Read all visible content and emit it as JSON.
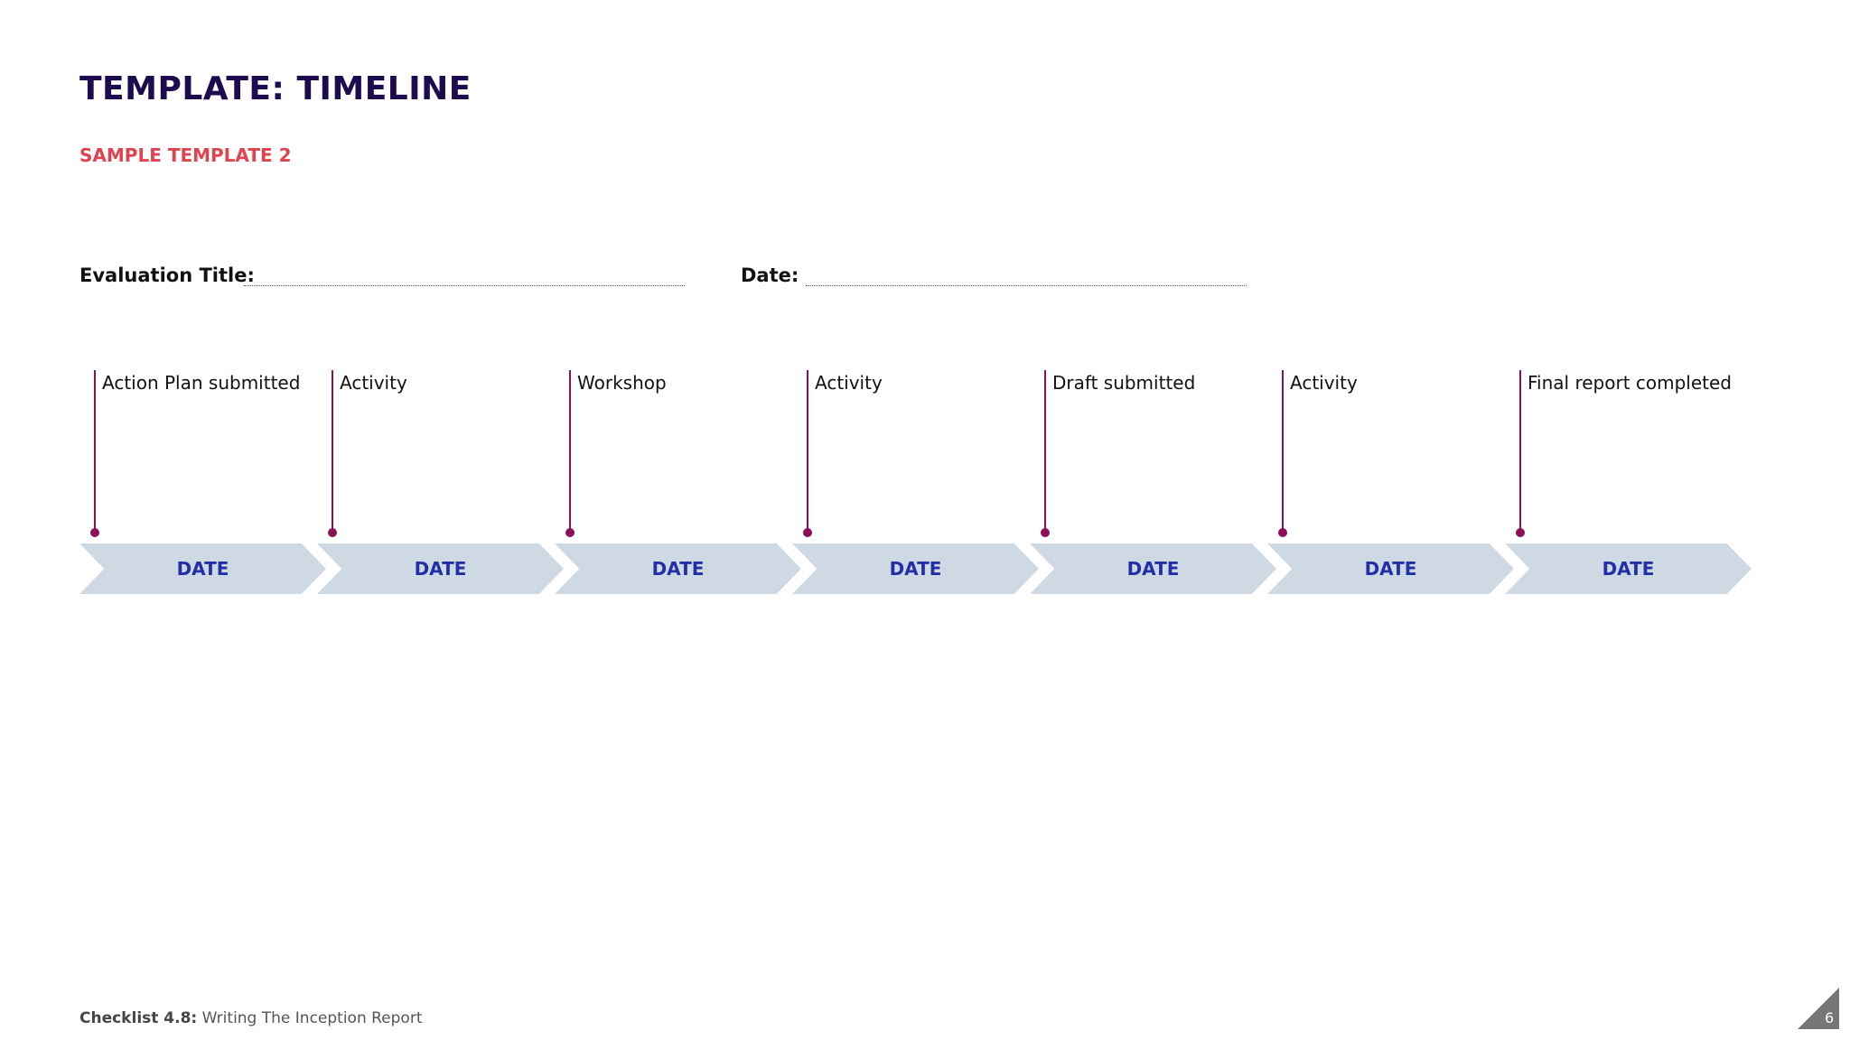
{
  "header": {
    "title": "TEMPLATE: TIMELINE",
    "subtitle": "SAMPLE TEMPLATE 2"
  },
  "form": {
    "evaluation_title_label": "Evaluation Title:",
    "date_label": "Date:"
  },
  "timeline": {
    "events": [
      {
        "label": "Action Plan submitted",
        "date": "DATE"
      },
      {
        "label": "Activity",
        "date": "DATE"
      },
      {
        "label": "Workshop",
        "date": "DATE"
      },
      {
        "label": "Activity",
        "date": "DATE"
      },
      {
        "label": "Draft submitted",
        "date": "DATE"
      },
      {
        "label": "Activity",
        "date": "DATE"
      },
      {
        "label": "Final report completed",
        "date": "DATE"
      }
    ]
  },
  "footer": {
    "checklist_label": "Checklist 4.8:",
    "checklist_title": "Writing The Inception Report",
    "page_number": "6"
  },
  "colors": {
    "title": "#1e0a4e",
    "subtitle": "#e0434f",
    "marker": "#8c0f57",
    "chevron_fill": "#cfd9e4",
    "chevron_text": "#2230a8"
  }
}
